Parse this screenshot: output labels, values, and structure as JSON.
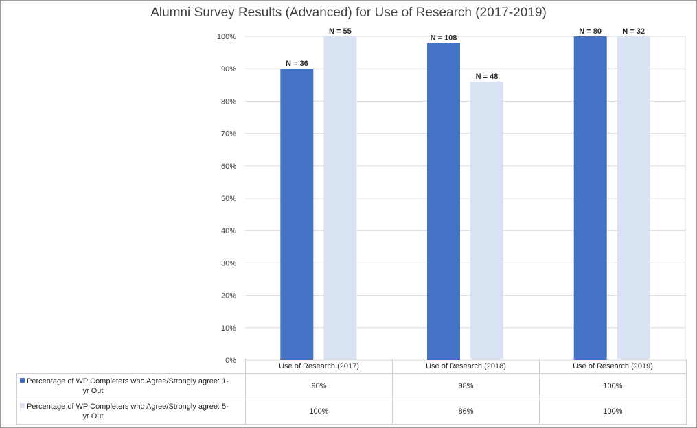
{
  "chart_data": {
    "type": "bar",
    "title": "Alumni Survey Results (Advanced) for Use of Research (2017-2019)",
    "categories": [
      "Use of Research (2017)",
      "Use of Research (2018)",
      "Use of Research (2019)"
    ],
    "series": [
      {
        "name": "Percentage of WP Completers who Agree/Strongly agree: 1-yr Out",
        "name_line1": "Percentage of WP Completers who Agree/Strongly agree: 1-",
        "name_line2": "yr Out",
        "color": "#4472C4",
        "values": [
          90,
          98,
          100
        ],
        "value_labels": [
          "90%",
          "98%",
          "100%"
        ],
        "n_labels": [
          "N = 36",
          "N = 108",
          "N = 80"
        ]
      },
      {
        "name": "Percentage of WP Completers who Agree/Strongly agree: 5-yr Out",
        "name_line1": "Percentage of WP Completers who Agree/Strongly agree: 5-",
        "name_line2": "yr Out",
        "color": "#DAE3F3",
        "values": [
          100,
          86,
          100
        ],
        "value_labels": [
          "100%",
          "86%",
          "100%"
        ],
        "n_labels": [
          "N = 55",
          "N = 48",
          "N = 32"
        ]
      }
    ],
    "ylim": [
      0,
      100
    ],
    "yticks": [
      "0%",
      "10%",
      "20%",
      "30%",
      "40%",
      "50%",
      "60%",
      "70%",
      "80%",
      "90%",
      "100%"
    ],
    "grid": true,
    "legend": "data table below chart"
  }
}
